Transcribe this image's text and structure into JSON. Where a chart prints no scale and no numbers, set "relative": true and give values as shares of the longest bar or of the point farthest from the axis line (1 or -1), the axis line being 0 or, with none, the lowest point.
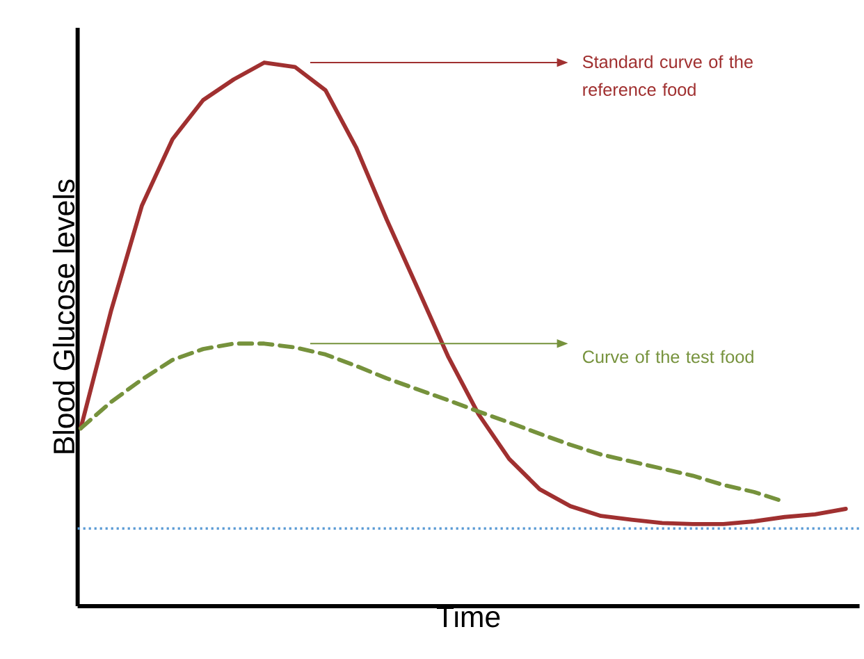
{
  "chart_data": {
    "type": "line",
    "relative": true,
    "xlabel": "Time",
    "ylabel": "Blood Glucose levels",
    "tick_labels": false,
    "categories": [
      null,
      null,
      null,
      null,
      null,
      null,
      null,
      null,
      null,
      null,
      null,
      null,
      null,
      null,
      null,
      null,
      null,
      null,
      null,
      null,
      null,
      null,
      null,
      null,
      null,
      null
    ],
    "series": [
      {
        "color": "#a03030",
        "line_style": "solid",
        "values": [
          0.327,
          0.545,
          0.737,
          0.859,
          0.931,
          0.969,
          1.0,
          0.992,
          0.949,
          0.844,
          0.711,
          0.586,
          0.46,
          0.353,
          0.271,
          0.215,
          0.184,
          0.166,
          0.159,
          0.153,
          0.151,
          0.151,
          0.156,
          0.164,
          0.169,
          0.179
        ]
      },
      {
        "color": "#76923c",
        "line_style": "dashed",
        "values": [
          0.327,
          0.376,
          0.417,
          0.453,
          0.473,
          0.483,
          0.483,
          0.476,
          0.463,
          0.442,
          0.419,
          0.399,
          0.379,
          0.358,
          0.338,
          0.317,
          0.297,
          0.279,
          0.266,
          0.253,
          0.24,
          0.223,
          0.21,
          0.192,
          null,
          null
        ]
      }
    ],
    "ref_lines": [
      {
        "axis": "y",
        "value": 0.143,
        "color": "#5b9bd5",
        "line_style": "dotted"
      }
    ],
    "annotations": [
      "Standard curve of the reference food",
      "Curve of the test food"
    ]
  }
}
